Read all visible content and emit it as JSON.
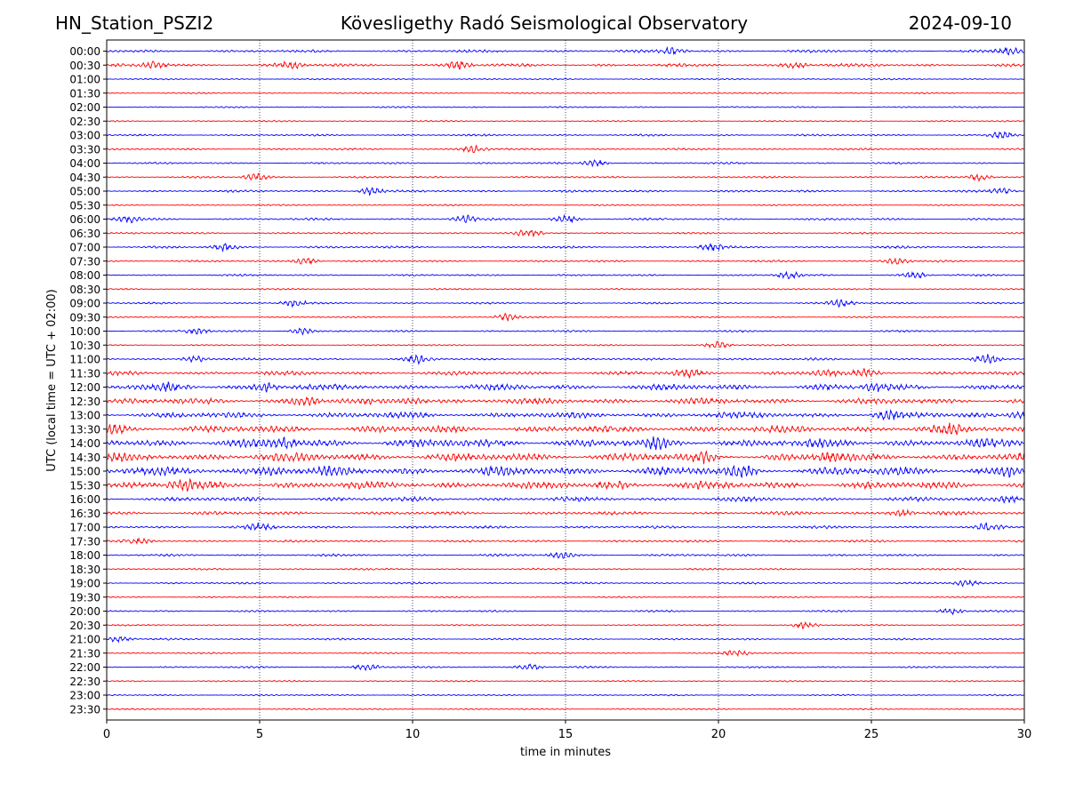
{
  "header": {
    "station": "HN_Station_PSZI2",
    "observatory": "Kövesligethy Radó Seismological Observatory",
    "date": "2024-09-10"
  },
  "chart_data": {
    "type": "line",
    "subtype": "helicorder",
    "title": "Kövesligethy Radó Seismological Observatory",
    "xlabel": "time in minutes",
    "ylabel": "UTC (local time = UTC + 02:00)",
    "xlim": [
      0,
      30
    ],
    "x_ticks": [
      0,
      5,
      10,
      15,
      20,
      25,
      30
    ],
    "grid": "vertical dotted at 5-minute ticks",
    "colors": {
      "blue": "#0000ff",
      "red": "#ff0000",
      "axis": "#000000",
      "grid": "#1a1a4d"
    },
    "rows": [
      {
        "label": "00:00",
        "color": "blue",
        "activity": 0.25,
        "events": [
          18.5,
          29.5
        ]
      },
      {
        "label": "00:30",
        "color": "red",
        "activity": 0.3,
        "events": [
          1.5,
          6.0,
          11.5,
          22.5
        ]
      },
      {
        "label": "01:00",
        "color": "blue",
        "activity": 0.1,
        "events": []
      },
      {
        "label": "01:30",
        "color": "red",
        "activity": 0.1,
        "events": []
      },
      {
        "label": "02:00",
        "color": "blue",
        "activity": 0.1,
        "events": []
      },
      {
        "label": "02:30",
        "color": "red",
        "activity": 0.1,
        "events": []
      },
      {
        "label": "03:00",
        "color": "blue",
        "activity": 0.15,
        "events": [
          29.3
        ]
      },
      {
        "label": "03:30",
        "color": "red",
        "activity": 0.15,
        "events": [
          12.0
        ]
      },
      {
        "label": "04:00",
        "color": "blue",
        "activity": 0.15,
        "events": [
          16.0
        ]
      },
      {
        "label": "04:30",
        "color": "red",
        "activity": 0.15,
        "events": [
          4.9,
          28.5
        ]
      },
      {
        "label": "05:00",
        "color": "blue",
        "activity": 0.2,
        "events": [
          8.6,
          29.3
        ]
      },
      {
        "label": "05:30",
        "color": "red",
        "activity": 0.1,
        "events": []
      },
      {
        "label": "06:00",
        "color": "blue",
        "activity": 0.2,
        "events": [
          0.7,
          11.7,
          15.0
        ]
      },
      {
        "label": "06:30",
        "color": "red",
        "activity": 0.15,
        "events": [
          13.8
        ]
      },
      {
        "label": "07:00",
        "color": "blue",
        "activity": 0.2,
        "events": [
          3.8,
          19.8
        ]
      },
      {
        "label": "07:30",
        "color": "red",
        "activity": 0.15,
        "events": [
          6.5,
          25.8
        ]
      },
      {
        "label": "08:00",
        "color": "blue",
        "activity": 0.15,
        "events": [
          22.3,
          26.4
        ]
      },
      {
        "label": "08:30",
        "color": "red",
        "activity": 0.1,
        "events": []
      },
      {
        "label": "09:00",
        "color": "blue",
        "activity": 0.15,
        "events": [
          6.1,
          24.0
        ]
      },
      {
        "label": "09:30",
        "color": "red",
        "activity": 0.1,
        "events": [
          13.1
        ]
      },
      {
        "label": "10:00",
        "color": "blue",
        "activity": 0.15,
        "events": [
          2.9,
          6.4
        ]
      },
      {
        "label": "10:30",
        "color": "red",
        "activity": 0.1,
        "events": [
          20.0
        ]
      },
      {
        "label": "11:00",
        "color": "blue",
        "activity": 0.2,
        "events": [
          2.9,
          10.2,
          28.8
        ]
      },
      {
        "label": "11:30",
        "color": "red",
        "activity": 0.4,
        "events": [
          19.0,
          23.5,
          24.8
        ]
      },
      {
        "label": "12:00",
        "color": "blue",
        "activity": 0.65,
        "events": [
          2.2,
          5.2,
          25.2
        ]
      },
      {
        "label": "12:30",
        "color": "red",
        "activity": 0.65,
        "events": [
          6.5,
          10.0
        ]
      },
      {
        "label": "13:00",
        "color": "blue",
        "activity": 0.65,
        "events": [
          25.5,
          29.9
        ]
      },
      {
        "label": "13:30",
        "color": "red",
        "activity": 0.8,
        "events": [
          0.2,
          27.5
        ]
      },
      {
        "label": "14:00",
        "color": "blue",
        "activity": 0.95,
        "events": [
          5.8,
          18.0
        ]
      },
      {
        "label": "14:30",
        "color": "red",
        "activity": 0.95,
        "events": [
          19.5,
          23.5
        ]
      },
      {
        "label": "15:00",
        "color": "blue",
        "activity": 1.0,
        "events": [
          5.5,
          20.8,
          29.5
        ]
      },
      {
        "label": "15:30",
        "color": "red",
        "activity": 0.85,
        "events": [
          2.5,
          16.5
        ]
      },
      {
        "label": "16:00",
        "color": "blue",
        "activity": 0.45,
        "events": [
          29.5
        ]
      },
      {
        "label": "16:30",
        "color": "red",
        "activity": 0.35,
        "events": [
          26.0
        ]
      },
      {
        "label": "17:00",
        "color": "blue",
        "activity": 0.25,
        "events": [
          5.0,
          28.8
        ]
      },
      {
        "label": "17:30",
        "color": "red",
        "activity": 0.2,
        "events": [
          1.0
        ]
      },
      {
        "label": "18:00",
        "color": "blue",
        "activity": 0.2,
        "events": [
          14.9
        ]
      },
      {
        "label": "18:30",
        "color": "red",
        "activity": 0.15,
        "events": []
      },
      {
        "label": "19:00",
        "color": "blue",
        "activity": 0.15,
        "events": [
          28.1
        ]
      },
      {
        "label": "19:30",
        "color": "red",
        "activity": 0.1,
        "events": []
      },
      {
        "label": "20:00",
        "color": "blue",
        "activity": 0.15,
        "events": [
          27.6
        ]
      },
      {
        "label": "20:30",
        "color": "red",
        "activity": 0.1,
        "events": [
          22.8
        ]
      },
      {
        "label": "21:00",
        "color": "blue",
        "activity": 0.15,
        "events": [
          0.4
        ]
      },
      {
        "label": "21:30",
        "color": "red",
        "activity": 0.1,
        "events": [
          20.6
        ]
      },
      {
        "label": "22:00",
        "color": "blue",
        "activity": 0.15,
        "events": [
          8.5,
          13.8
        ]
      },
      {
        "label": "22:30",
        "color": "red",
        "activity": 0.1,
        "events": []
      },
      {
        "label": "23:00",
        "color": "blue",
        "activity": 0.1,
        "events": []
      },
      {
        "label": "23:30",
        "color": "red",
        "activity": 0.1,
        "events": []
      }
    ]
  }
}
